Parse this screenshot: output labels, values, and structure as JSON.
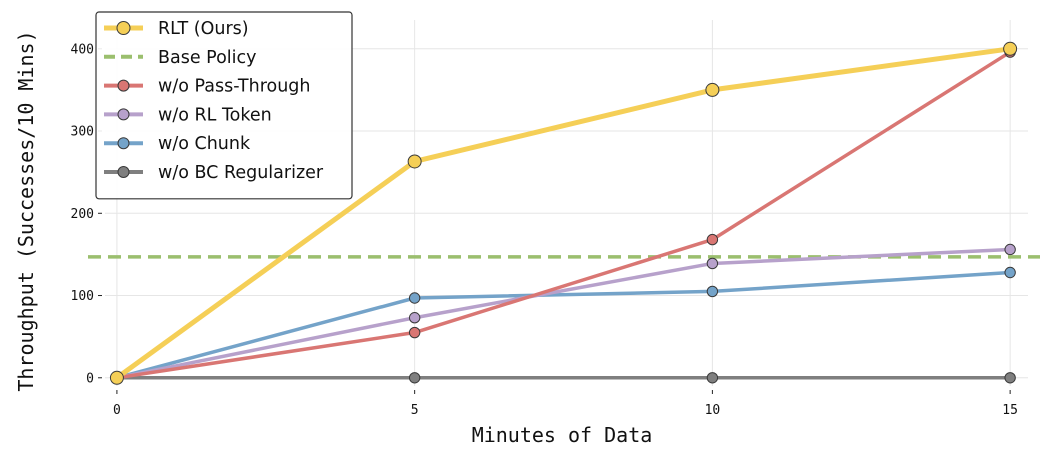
{
  "chart_data": {
    "type": "line",
    "xlabel": "Minutes of Data",
    "ylabel": "Throughput (Successes/10 Mins)",
    "x": [
      0,
      5,
      10,
      15
    ],
    "xticks": [
      "0",
      "5",
      "10",
      "15"
    ],
    "yticks": [
      "0",
      "100",
      "200",
      "300",
      "400"
    ],
    "xlim": [
      -0.2,
      15.3
    ],
    "ylim": [
      -10,
      435
    ],
    "grid": true,
    "legend_position": "top-left",
    "series": [
      {
        "name": "RLT (Ours)",
        "color": "#F5CF57",
        "values": [
          0,
          263,
          350,
          400
        ],
        "style": "solid",
        "markers": true
      },
      {
        "name": "Base Policy",
        "color": "#9BBF6E",
        "value": 147,
        "style": "dashed",
        "markers": false
      },
      {
        "name": "w/o Pass-Through",
        "color": "#D97673",
        "values": [
          0,
          55,
          168,
          396
        ],
        "style": "solid",
        "markers": true
      },
      {
        "name": "w/o RL Token",
        "color": "#B7A1CB",
        "values": [
          0,
          73,
          139,
          156
        ],
        "style": "solid",
        "markers": true
      },
      {
        "name": "w/o Chunk",
        "color": "#74A3C9",
        "values": [
          0,
          97,
          105,
          128
        ],
        "style": "solid",
        "markers": true
      },
      {
        "name": "w/o BC Regularizer",
        "color": "#7F7F7F",
        "values": [
          0,
          0,
          0,
          0
        ],
        "style": "solid",
        "markers": true
      }
    ]
  }
}
